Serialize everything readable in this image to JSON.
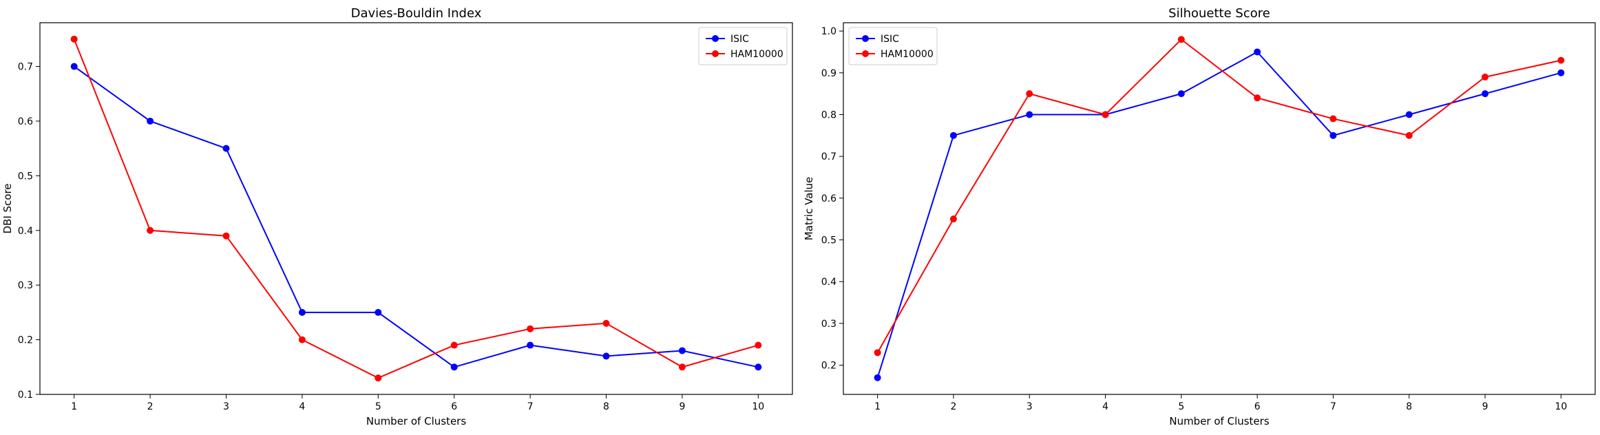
{
  "chart_data": [
    {
      "type": "line",
      "title": "Davies-Bouldin Index",
      "xlabel": "Number of Clusters",
      "ylabel": "DBI Score",
      "x": [
        1,
        2,
        3,
        4,
        5,
        6,
        7,
        8,
        9,
        10
      ],
      "xlim": [
        0.55,
        10.45
      ],
      "ylim": [
        0.1,
        0.78
      ],
      "yticks": [
        0.1,
        0.2,
        0.3,
        0.4,
        0.5,
        0.6,
        0.7
      ],
      "grid": false,
      "legend_position": "top-right",
      "series": [
        {
          "name": "ISIC",
          "color": "#0000ff",
          "values": [
            0.7,
            0.6,
            0.55,
            0.25,
            0.25,
            0.15,
            0.19,
            0.17,
            0.18,
            0.15
          ]
        },
        {
          "name": "HAM10000",
          "color": "#ff0000",
          "values": [
            0.75,
            0.4,
            0.39,
            0.2,
            0.13,
            0.19,
            0.22,
            0.23,
            0.15,
            0.19
          ]
        }
      ]
    },
    {
      "type": "line",
      "title": "Silhouette Score",
      "xlabel": "Number of Clusters",
      "ylabel": "Matric Value",
      "x": [
        1,
        2,
        3,
        4,
        5,
        6,
        7,
        8,
        9,
        10
      ],
      "xlim": [
        0.55,
        10.45
      ],
      "ylim": [
        0.13,
        1.02
      ],
      "yticks": [
        0.2,
        0.3,
        0.4,
        0.5,
        0.6,
        0.7,
        0.8,
        0.9,
        1.0
      ],
      "grid": false,
      "legend_position": "top-left",
      "series": [
        {
          "name": "ISIC",
          "color": "#0000ff",
          "values": [
            0.17,
            0.75,
            0.8,
            0.8,
            0.85,
            0.95,
            0.75,
            0.8,
            0.85,
            0.9
          ]
        },
        {
          "name": "HAM10000",
          "color": "#ff0000",
          "values": [
            0.23,
            0.55,
            0.85,
            0.8,
            0.98,
            0.84,
            0.79,
            0.75,
            0.89,
            0.93
          ]
        }
      ]
    }
  ]
}
